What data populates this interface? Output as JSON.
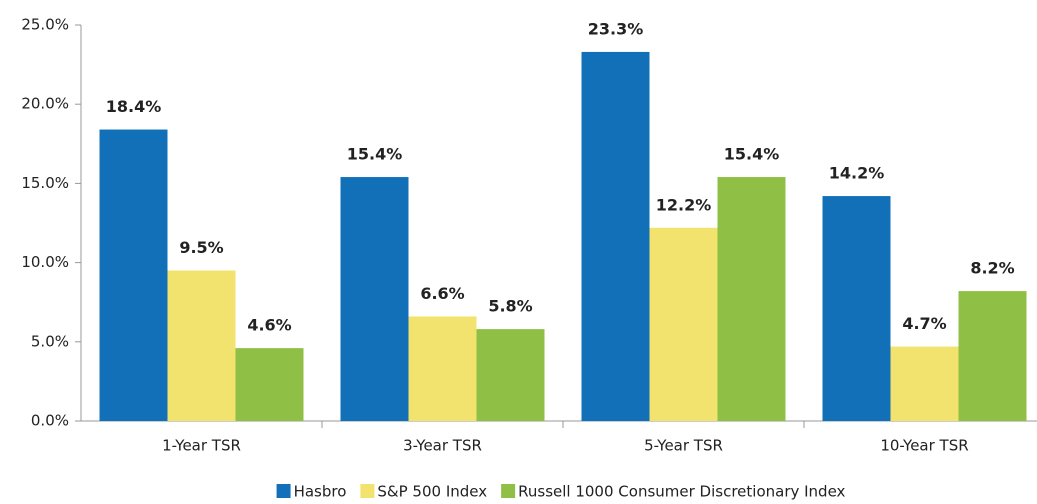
{
  "chart_data": {
    "type": "bar",
    "categories": [
      "1-Year TSR",
      "3-Year TSR",
      "5-Year TSR",
      "10-Year TSR"
    ],
    "series": [
      {
        "name": "Hasbro",
        "color": "#1170b8",
        "values": [
          18.4,
          15.4,
          23.3,
          14.2
        ],
        "value_labels": [
          "18.4%",
          "15.4%",
          "23.3%",
          "14.2%"
        ]
      },
      {
        "name": "S&P 500 Index",
        "color": "#f2e36e",
        "values": [
          9.5,
          6.6,
          12.2,
          4.7
        ],
        "value_labels": [
          "9.5%",
          "6.6%",
          "12.2%",
          "4.7%"
        ]
      },
      {
        "name": "Russell 1000 Consumer Discretionary Index",
        "color": "#8fbf44",
        "values": [
          4.6,
          5.8,
          15.4,
          8.2
        ],
        "value_labels": [
          "4.6%",
          "5.8%",
          "15.4%",
          "8.2%"
        ]
      }
    ],
    "ylim": [
      0,
      25
    ],
    "yticks": [
      {
        "value": 0,
        "label": "0.0%"
      },
      {
        "value": 5,
        "label": "5.0%"
      },
      {
        "value": 10,
        "label": "10.0%"
      },
      {
        "value": 15,
        "label": "15.0%"
      },
      {
        "value": 20,
        "label": "20.0%"
      },
      {
        "value": 25,
        "label": "25.0%"
      }
    ],
    "legend": "bottom"
  }
}
